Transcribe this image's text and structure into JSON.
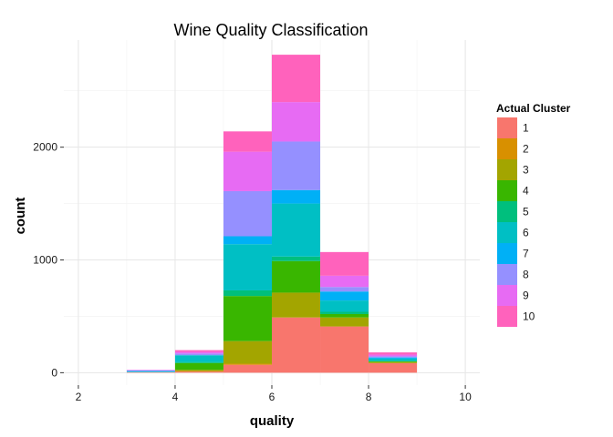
{
  "chart_data": {
    "type": "bar",
    "stacked": true,
    "title": "Wine Quality Classification",
    "xlabel": "quality",
    "ylabel": "count",
    "xlim": [
      1.7,
      10.3
    ],
    "ylim": [
      -110,
      2950
    ],
    "x_ticks": [
      2,
      4,
      6,
      8,
      10
    ],
    "y_ticks": [
      0,
      1000,
      2000
    ],
    "y_tick_labels": [
      "0",
      "1000",
      "2000"
    ],
    "x_tick_labels": [
      "2",
      "4",
      "6",
      "8",
      "10"
    ],
    "bin_width": 1,
    "bins": [
      3,
      4,
      5,
      6,
      7,
      8
    ],
    "grid": true,
    "legend": {
      "title": "Actual Cluster",
      "position": "right"
    },
    "series": [
      {
        "name": "1",
        "color": "#F8766D",
        "values": [
          5,
          10,
          70,
          490,
          410,
          85
        ]
      },
      {
        "name": "2",
        "color": "#D89000",
        "values": [
          0,
          5,
          10,
          0,
          0,
          0
        ]
      },
      {
        "name": "3",
        "color": "#A3A500",
        "values": [
          0,
          10,
          200,
          220,
          80,
          10
        ]
      },
      {
        "name": "4",
        "color": "#39B600",
        "values": [
          0,
          60,
          400,
          280,
          30,
          5
        ]
      },
      {
        "name": "5",
        "color": "#00BF7D",
        "values": [
          0,
          10,
          50,
          40,
          20,
          5
        ]
      },
      {
        "name": "6",
        "color": "#00BFC4",
        "values": [
          5,
          60,
          410,
          470,
          100,
          20
        ]
      },
      {
        "name": "7",
        "color": "#00B0F6",
        "values": [
          5,
          0,
          70,
          120,
          80,
          10
        ]
      },
      {
        "name": "8",
        "color": "#9590FF",
        "values": [
          5,
          15,
          400,
          430,
          40,
          10
        ]
      },
      {
        "name": "9",
        "color": "#E76BF3",
        "values": [
          5,
          15,
          350,
          350,
          100,
          15
        ]
      },
      {
        "name": "10",
        "color": "#FF62BC",
        "values": [
          0,
          15,
          180,
          420,
          210,
          20
        ]
      }
    ]
  }
}
